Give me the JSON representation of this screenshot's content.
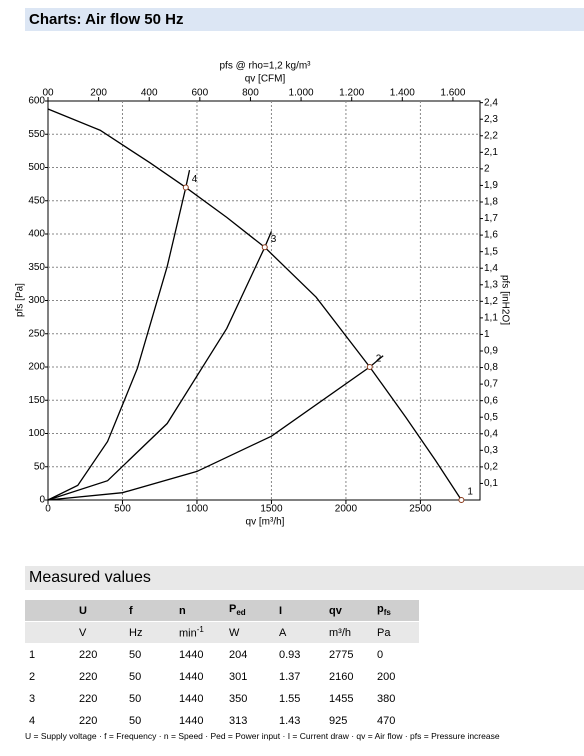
{
  "header": {
    "title": "Charts: Air flow 50 Hz"
  },
  "chart_data": {
    "type": "line",
    "title": "pfs @ rho=1,2 kg/m³",
    "x2label": "qv [CFM]",
    "xlabel": "qv [m³/h]",
    "ylabel": "pfs [Pa]",
    "y2label": "pfs [inH2O]",
    "xlim": [
      0,
      2900
    ],
    "xticks": [
      0,
      500,
      1000,
      1500,
      2000,
      2500
    ],
    "ylim": [
      0,
      600
    ],
    "yticks": [
      0,
      50,
      100,
      150,
      200,
      250,
      300,
      350,
      400,
      450,
      500,
      550,
      600
    ],
    "x2lim": [
      0,
      1707
    ],
    "x2ticks": [
      {
        "value": 0,
        "label": "00"
      },
      200,
      400,
      600,
      800,
      {
        "value": 1000,
        "label": "1.000"
      },
      {
        "value": 1200,
        "label": "1.200"
      },
      {
        "value": 1400,
        "label": "1.400"
      },
      {
        "value": 1600,
        "label": "1.600"
      }
    ],
    "y2lim": [
      0,
      2.41
    ],
    "y2ticks": [
      {
        "value": 0.1,
        "label": "0,1"
      },
      {
        "value": 0.2,
        "label": "0,2"
      },
      {
        "value": 0.3,
        "label": "0,3"
      },
      {
        "value": 0.4,
        "label": "0,4"
      },
      {
        "value": 0.5,
        "label": "0,5"
      },
      {
        "value": 0.6,
        "label": "0,6"
      },
      {
        "value": 0.7,
        "label": "0,7"
      },
      {
        "value": 0.8,
        "label": "0,8"
      },
      {
        "value": 0.9,
        "label": "0,9"
      },
      1,
      {
        "value": 1.1,
        "label": "1,1"
      },
      {
        "value": 1.2,
        "label": "1,2"
      },
      {
        "value": 1.3,
        "label": "1,3"
      },
      {
        "value": 1.4,
        "label": "1,4"
      },
      {
        "value": 1.5,
        "label": "1,5"
      },
      {
        "value": 1.6,
        "label": "1,6"
      },
      {
        "value": 1.7,
        "label": "1,7"
      },
      {
        "value": 1.8,
        "label": "1,8"
      },
      {
        "value": 1.9,
        "label": "1,9"
      },
      2,
      {
        "value": 2.1,
        "label": "2,1"
      },
      {
        "value": 2.2,
        "label": "2,2"
      },
      {
        "value": 2.3,
        "label": "2,3"
      },
      {
        "value": 2.4,
        "label": "2,4"
      }
    ],
    "grid": true,
    "series": [
      {
        "color": "#000000",
        "x": [
          0,
          350,
          685,
          925,
          1200,
          1455,
          1800,
          2160,
          2400,
          2600,
          2775
        ],
        "values": [
          588,
          556,
          507,
          470,
          425,
          380,
          305,
          200,
          125,
          60,
          0
        ]
      },
      {
        "color": "#000000",
        "x": [
          0,
          200,
          400,
          600,
          800,
          925,
          950
        ],
        "values": [
          0,
          22,
          88,
          198,
          351,
          470,
          496
        ]
      },
      {
        "color": "#000000",
        "x": [
          0,
          400,
          800,
          1200,
          1455,
          1500
        ],
        "values": [
          0,
          29,
          115,
          258,
          380,
          404
        ]
      },
      {
        "color": "#000000",
        "x": [
          0,
          500,
          1000,
          1500,
          2160,
          2250
        ],
        "values": [
          0,
          11,
          43,
          96,
          200,
          217
        ]
      }
    ],
    "points": [
      {
        "x": 2775,
        "y": 0,
        "label": "1"
      },
      {
        "x": 2160,
        "y": 200,
        "label": "2"
      },
      {
        "x": 1455,
        "y": 380,
        "label": "3"
      },
      {
        "x": 925,
        "y": 470,
        "label": "4"
      }
    ]
  },
  "section": {
    "title": "Measured values"
  },
  "table": {
    "header": [
      {
        "text": "U"
      },
      {
        "text": "f"
      },
      {
        "text": "n"
      },
      {
        "text": "P",
        "sub": "ed"
      },
      {
        "text": "I"
      },
      {
        "text": "qv"
      },
      {
        "text": "p",
        "sub": "fs"
      }
    ],
    "units": [
      {
        "text": "V"
      },
      {
        "text": "Hz"
      },
      {
        "text": "min",
        "sup": "-1"
      },
      {
        "text": "W"
      },
      {
        "text": "A"
      },
      {
        "text": "m³/h"
      },
      {
        "text": "Pa"
      }
    ],
    "rows": [
      [
        1,
        220,
        50,
        1440,
        204,
        0.93,
        2775,
        0
      ],
      [
        2,
        220,
        50,
        1440,
        301,
        1.37,
        2160,
        200
      ],
      [
        3,
        220,
        50,
        1440,
        350,
        1.55,
        1455,
        380
      ],
      [
        4,
        220,
        50,
        1440,
        313,
        1.43,
        925,
        470
      ]
    ]
  },
  "footnote": "U = Supply voltage · f = Frequency · n = Speed · Ped = Power input · I = Current draw · qv = Air flow · pfs = Pressure increase"
}
